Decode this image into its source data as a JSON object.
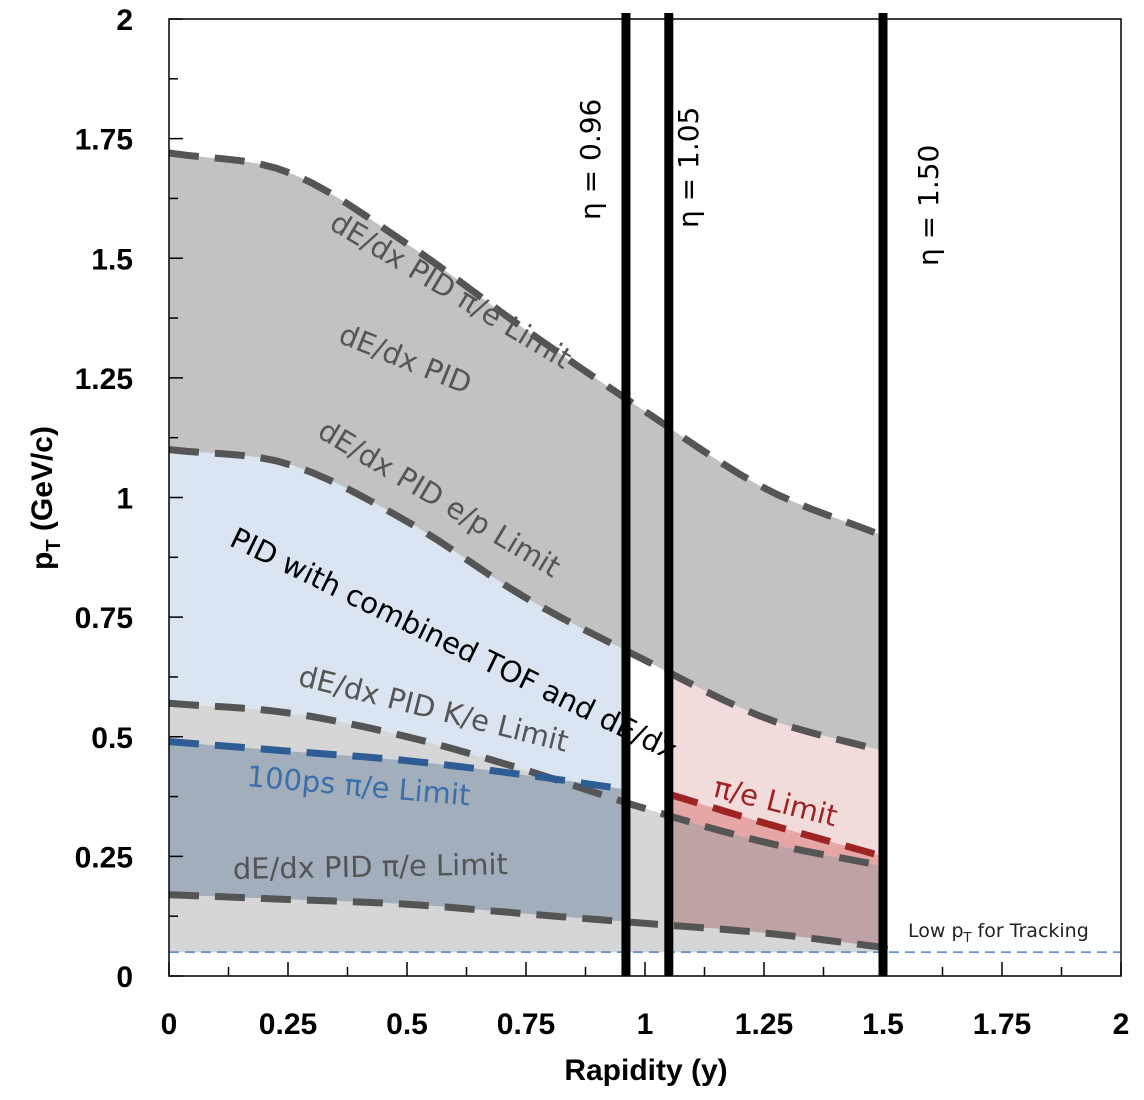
{
  "chart_data": {
    "type": "area",
    "xlabel": "Rapidity (y)",
    "ylabel": "p_T (GeV/c)",
    "ylabel_main": "p",
    "ylabel_sub": "T",
    "ylabel_rest": " (GeV/c)",
    "xlim": [
      0,
      2
    ],
    "ylim": [
      0,
      2
    ],
    "x_ticks": [
      "0",
      "0.25",
      "0.5",
      "0.75",
      "1",
      "1.25",
      "1.5",
      "1.75",
      "2"
    ],
    "y_ticks": [
      "0",
      "0.25",
      "0.5",
      "0.75",
      "1",
      "1.25",
      "1.5",
      "1.75",
      "2"
    ],
    "grid": false,
    "curves": {
      "dedx_pi_e_high": {
        "x": [
          0,
          0.25,
          0.5,
          0.75,
          1.0,
          1.25,
          1.5
        ],
        "y": [
          1.72,
          1.68,
          1.53,
          1.35,
          1.18,
          1.02,
          0.92
        ]
      },
      "dedx_e_p": {
        "x": [
          0,
          0.25,
          0.5,
          0.75,
          1.0,
          1.25,
          1.5
        ],
        "y": [
          1.1,
          1.07,
          0.95,
          0.79,
          0.66,
          0.54,
          0.47
        ]
      },
      "dedx_k_e": {
        "x": [
          0,
          0.25,
          0.5,
          0.75,
          1.0,
          1.25,
          1.5
        ],
        "y": [
          0.57,
          0.55,
          0.5,
          0.43,
          0.35,
          0.28,
          0.23
        ]
      },
      "tof_100ps_pi_e": {
        "x": [
          0,
          0.25,
          0.5,
          0.75,
          0.96
        ],
        "y": [
          0.49,
          0.47,
          0.45,
          0.42,
          0.39
        ]
      },
      "pi_e_limit_red": {
        "x": [
          1.05,
          1.25,
          1.5
        ],
        "y": [
          0.38,
          0.32,
          0.25
        ]
      },
      "dedx_pi_e_low": {
        "x": [
          0,
          0.25,
          0.5,
          0.75,
          1.0,
          1.25,
          1.5
        ],
        "y": [
          0.17,
          0.16,
          0.15,
          0.13,
          0.11,
          0.09,
          0.06
        ]
      },
      "low_pt_tracking": {
        "x": [
          0,
          2
        ],
        "y": [
          0.05,
          0.05
        ]
      }
    },
    "vertical_lines": [
      {
        "x": 0.96,
        "label": "η = 0.96"
      },
      {
        "x": 1.05,
        "label": "η = 1.05"
      },
      {
        "x": 1.5,
        "label": "η = 1.50"
      }
    ],
    "annotations": {
      "upper_limit": "dE/dx PID π/e Limit",
      "dedx_pid": "dE/dx PID",
      "ep_limit": "dE/dx PID e/p Limit",
      "combined": "PID with combined TOF and dE/dx",
      "ke_limit": "dE/dx PID K/e Limit",
      "tof_limit": "100ps π/e Limit",
      "red_limit": "π/e Limit",
      "lower_limit": "dE/dx PID π/e Limit",
      "tracking_main": "Low p",
      "tracking_sub": "T",
      "tracking_rest": " for Tracking"
    }
  },
  "colors": {
    "gray_band": "#c2c2c2",
    "light_gray": "#d6d6d6",
    "light_blue": "#dbe5f1",
    "slate_blue": "#a2aebc",
    "pink": "#f2dcdb",
    "rose": "#bfa2a4",
    "red_strip": "#e6a6a6",
    "dark_dash": "#555555",
    "blue_dash": "#2e5c94",
    "red_dash": "#9e2424",
    "tracking_line": "#4f81bd"
  }
}
